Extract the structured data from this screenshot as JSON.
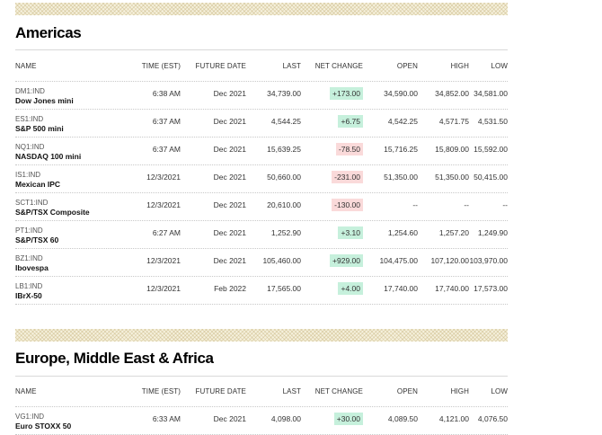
{
  "columns": [
    "NAME",
    "TIME (EST)",
    "FUTURE DATE",
    "LAST",
    "NET CHANGE",
    "OPEN",
    "HIGH",
    "LOW"
  ],
  "americas": {
    "title": "Americas",
    "rows": [
      {
        "symbol": "DM1:IND",
        "name": "Dow Jones mini",
        "time": "6:38 AM",
        "future_date": "Dec 2021",
        "last": "34,739.00",
        "net_change": "+173.00",
        "direction": "up",
        "open": "34,590.00",
        "high": "34,852.00",
        "low": "34,581.00"
      },
      {
        "symbol": "ES1:IND",
        "name": "S&P 500 mini",
        "time": "6:37 AM",
        "future_date": "Dec 2021",
        "last": "4,544.25",
        "net_change": "+6.75",
        "direction": "up",
        "open": "4,542.25",
        "high": "4,571.75",
        "low": "4,531.50"
      },
      {
        "symbol": "NQ1:IND",
        "name": "NASDAQ 100 mini",
        "time": "6:37 AM",
        "future_date": "Dec 2021",
        "last": "15,639.25",
        "net_change": "-78.50",
        "direction": "down",
        "open": "15,716.25",
        "high": "15,809.00",
        "low": "15,592.00"
      },
      {
        "symbol": "IS1:IND",
        "name": "Mexican IPC",
        "time": "12/3/2021",
        "future_date": "Dec 2021",
        "last": "50,660.00",
        "net_change": "-231.00",
        "direction": "down",
        "open": "51,350.00",
        "high": "51,350.00",
        "low": "50,415.00"
      },
      {
        "symbol": "SCT1:IND",
        "name": "S&P/TSX Composite",
        "time": "12/3/2021",
        "future_date": "Dec 2021",
        "last": "20,610.00",
        "net_change": "-130.00",
        "direction": "down",
        "open": "--",
        "high": "--",
        "low": "--"
      },
      {
        "symbol": "PT1:IND",
        "name": "S&P/TSX 60",
        "time": "6:27 AM",
        "future_date": "Dec 2021",
        "last": "1,252.90",
        "net_change": "+3.10",
        "direction": "up",
        "open": "1,254.60",
        "high": "1,257.20",
        "low": "1,249.90"
      },
      {
        "symbol": "BZ1:IND",
        "name": "Ibovespa",
        "time": "12/3/2021",
        "future_date": "Dec 2021",
        "last": "105,460.00",
        "net_change": "+929.00",
        "direction": "up",
        "open": "104,475.00",
        "high": "107,120.00",
        "low": "103,970.00"
      },
      {
        "symbol": "LB1:IND",
        "name": "IBrX-50",
        "time": "12/3/2021",
        "future_date": "Feb 2022",
        "last": "17,565.00",
        "net_change": "+4.00",
        "direction": "up",
        "open": "17,740.00",
        "high": "17,740.00",
        "low": "17,573.00"
      }
    ]
  },
  "emea": {
    "title": "Europe, Middle East & Africa",
    "rows": [
      {
        "symbol": "VG1:IND",
        "name": "Euro STOXX 50",
        "time": "6:33 AM",
        "future_date": "Dec 2021",
        "last": "4,098.00",
        "net_change": "+30.00",
        "direction": "up",
        "open": "4,089.50",
        "high": "4,121.00",
        "low": "4,076.50"
      }
    ]
  },
  "colors": {
    "up_bg": "#c6f0dc",
    "down_bg": "#fadada",
    "hatch_bg": "#f6f1dd"
  }
}
